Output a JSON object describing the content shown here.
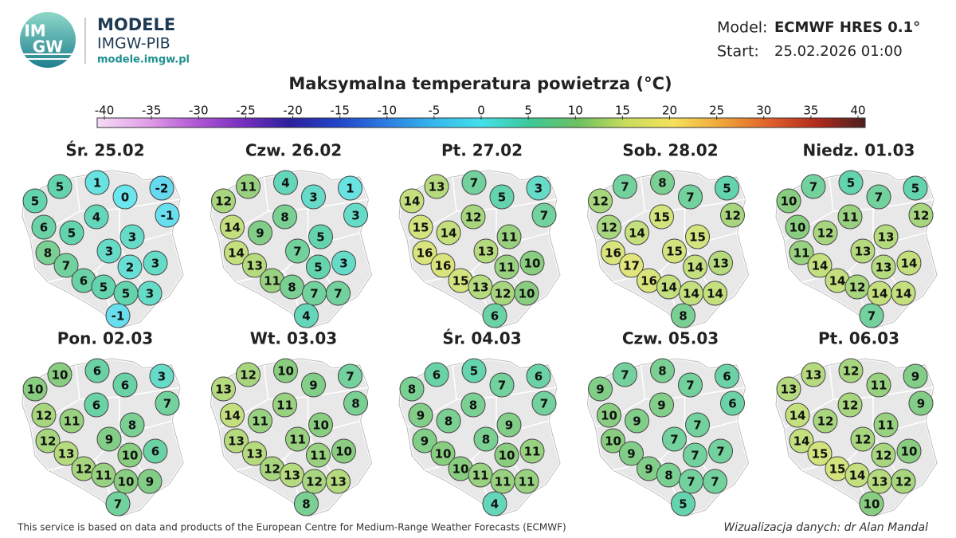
{
  "header": {
    "logo_lines": [
      "IM",
      "GW"
    ],
    "brand": "MODELE",
    "org": "IMGW-PIB",
    "url": "modele.imgw.pl",
    "model_label": "Model:",
    "model": "ECMWF HRES 0.1°",
    "start_label": "Start:",
    "start": "25.02.2026 01:00"
  },
  "title": "Maksymalna temperatura powietrza (°C)",
  "colorbar": {
    "ticks": [
      -40,
      -35,
      -30,
      -25,
      -20,
      -15,
      -10,
      -5,
      0,
      5,
      10,
      15,
      20,
      25,
      30,
      35,
      40
    ],
    "colors": [
      "#f6dcf6",
      "#e3a2e8",
      "#b45ad6",
      "#7a2fc0",
      "#2c1f9c",
      "#2244c8",
      "#2b7be0",
      "#35b6ee",
      "#44e0ea",
      "#3cc99a",
      "#6cc060",
      "#c8dc5c",
      "#f5e15a",
      "#f0a63a",
      "#e0602a",
      "#b02a1c",
      "#4a2020"
    ]
  },
  "panels": [
    {
      "title": "Śr. 25.02",
      "values": [
        5,
        5,
        1,
        0,
        -2,
        -1,
        4,
        6,
        5,
        3,
        8,
        3,
        7,
        2,
        3,
        6,
        5,
        5,
        3,
        -1
      ]
    },
    {
      "title": "Czw. 26.02",
      "values": [
        12,
        11,
        4,
        3,
        1,
        3,
        8,
        14,
        9,
        5,
        14,
        7,
        13,
        5,
        3,
        11,
        8,
        7,
        7,
        4
      ]
    },
    {
      "title": "Pt. 27.02",
      "values": [
        14,
        13,
        7,
        5,
        3,
        7,
        12,
        15,
        14,
        11,
        16,
        13,
        16,
        11,
        10,
        15,
        13,
        12,
        10,
        6
      ]
    },
    {
      "title": "Sob. 28.02",
      "values": [
        12,
        7,
        8,
        7,
        5,
        12,
        15,
        12,
        14,
        15,
        16,
        15,
        17,
        14,
        13,
        16,
        14,
        14,
        14,
        8
      ]
    },
    {
      "title": "Niedz. 01.03",
      "values": [
        10,
        7,
        5,
        7,
        5,
        12,
        11,
        10,
        12,
        13,
        11,
        13,
        14,
        13,
        14,
        14,
        12,
        14,
        14,
        7
      ]
    },
    {
      "title": "Pon. 02.03",
      "values": [
        10,
        10,
        6,
        6,
        3,
        7,
        6,
        12,
        11,
        8,
        12,
        9,
        13,
        10,
        6,
        12,
        11,
        10,
        9,
        7
      ]
    },
    {
      "title": "Wt. 03.03",
      "values": [
        13,
        12,
        10,
        9,
        7,
        8,
        11,
        14,
        11,
        10,
        13,
        11,
        13,
        11,
        10,
        12,
        13,
        12,
        13,
        8
      ]
    },
    {
      "title": "Śr. 04.03",
      "values": [
        8,
        6,
        5,
        7,
        6,
        7,
        8,
        9,
        8,
        9,
        9,
        8,
        10,
        10,
        11,
        10,
        11,
        11,
        11,
        4
      ]
    },
    {
      "title": "Czw. 05.03",
      "values": [
        9,
        7,
        8,
        7,
        6,
        6,
        9,
        10,
        9,
        7,
        10,
        7,
        9,
        7,
        7,
        9,
        8,
        7,
        7,
        5
      ]
    },
    {
      "title": "Pt. 06.03",
      "values": [
        13,
        13,
        12,
        11,
        9,
        9,
        12,
        14,
        12,
        11,
        14,
        12,
        15,
        12,
        10,
        15,
        14,
        13,
        12,
        10
      ]
    }
  ],
  "footer": {
    "source": "This service is based on data and products of the European Centre for Medium-Range Weather Forecasts (ECMWF)",
    "credit": "Wizualizacja danych: dr Alan Mandal"
  }
}
